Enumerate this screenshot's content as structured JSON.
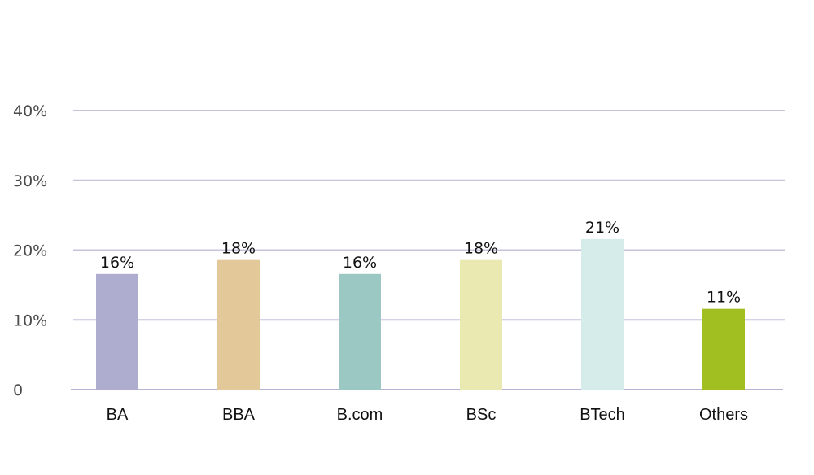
{
  "chart_data": {
    "type": "bar",
    "categories": [
      "BA",
      "BBA",
      "B.com",
      "BSc",
      "BTech",
      "Others"
    ],
    "values": [
      16,
      18,
      16,
      18,
      21,
      11
    ],
    "data_labels": [
      "16%",
      "18%",
      "16%",
      "18%",
      "21%",
      "11%"
    ],
    "colors": [
      "#aeadd0",
      "#e3c999",
      "#9cc8c4",
      "#ebe9b2",
      "#d6ecea",
      "#a2bf22"
    ],
    "y_ticks": [
      {
        "value": 0,
        "label": "0"
      },
      {
        "value": 10,
        "label": "10%"
      },
      {
        "value": 20,
        "label": "20%"
      },
      {
        "value": 30,
        "label": "30%"
      },
      {
        "value": 40,
        "label": "40%"
      }
    ],
    "ylim": [
      0,
      40
    ],
    "grid": true,
    "legend": "none",
    "title": "",
    "xlabel": "",
    "ylabel": ""
  }
}
